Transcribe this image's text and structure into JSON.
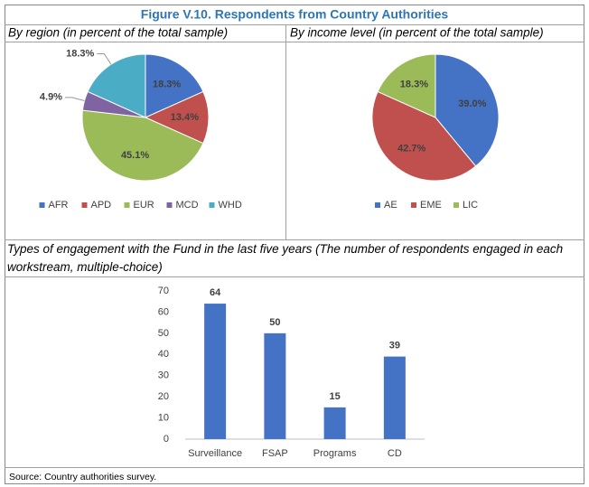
{
  "title": "Figure V.10. Respondents from Country Authorities",
  "source": "Source: Country authorities survey.",
  "chart_data": [
    {
      "type": "pie",
      "title": "By region (in percent of the total sample)",
      "categories": [
        "AFR",
        "APD",
        "EUR",
        "MCD",
        "WHD"
      ],
      "values": [
        18.3,
        13.4,
        45.1,
        4.9,
        18.3
      ],
      "value_labels": [
        "18.3%",
        "13.4%",
        "45.1%",
        "4.9%",
        "18.3%"
      ],
      "colors": [
        "#4472c4",
        "#c0504d",
        "#9bbb59",
        "#8064a2",
        "#4bacc6"
      ],
      "legend": "bottom"
    },
    {
      "type": "pie",
      "title": "By income level (in percent of the total sample)",
      "categories": [
        "AE",
        "EME",
        "LIC"
      ],
      "values": [
        39.0,
        42.7,
        18.3
      ],
      "value_labels": [
        "39.0%",
        "42.7%",
        "18.3%"
      ],
      "colors": [
        "#4472c4",
        "#c0504d",
        "#9bbb59"
      ],
      "legend": "bottom"
    },
    {
      "type": "bar",
      "title": "Types of engagement with the Fund in the last five years (The number of respondents engaged in each workstream, multiple-choice)",
      "categories": [
        "Surveillance",
        "FSAP",
        "Programs",
        "CD"
      ],
      "values": [
        64,
        50,
        15,
        39
      ],
      "color": "#4472c4",
      "ylim": [
        0,
        70
      ],
      "yticks": [
        0,
        10,
        20,
        30,
        40,
        50,
        60,
        70
      ],
      "grid": false
    }
  ]
}
